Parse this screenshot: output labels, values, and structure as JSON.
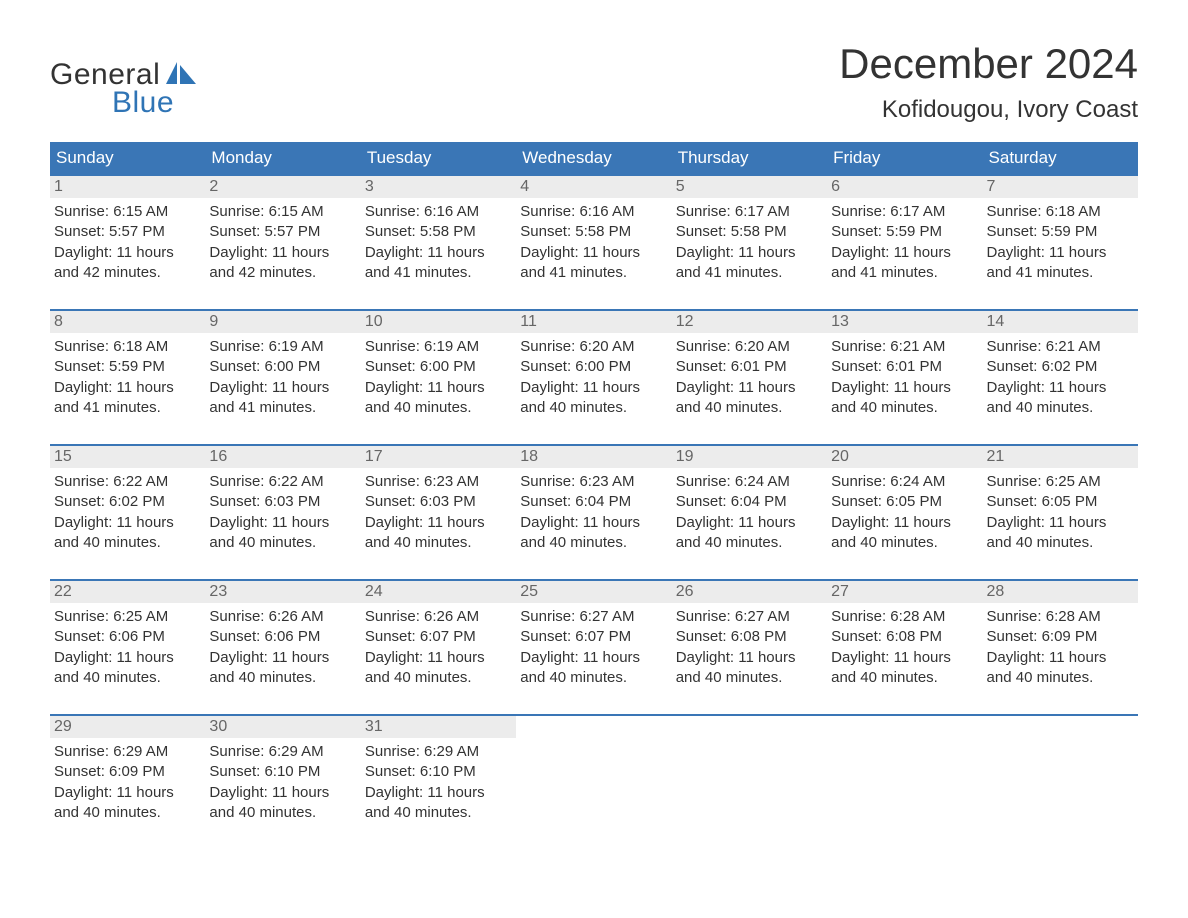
{
  "logo": {
    "word1": "General",
    "word2": "Blue",
    "word1_color": "#333333",
    "word2_color": "#2f74b5"
  },
  "header": {
    "month_title": "December 2024",
    "location": "Kofidougou, Ivory Coast"
  },
  "colors": {
    "header_bg": "#3a76b6",
    "header_text": "#ffffff",
    "row_separator": "#3a76b6",
    "daynum_bg": "#ececec",
    "daynum_text": "#666666",
    "body_text": "#333333",
    "page_bg": "#ffffff"
  },
  "typography": {
    "month_title_fontsize": 42,
    "location_fontsize": 24,
    "weekday_header_fontsize": 17,
    "daynum_fontsize": 16,
    "detail_fontsize": 15,
    "logo_fontsize": 30,
    "font_family": "Arial"
  },
  "calendar": {
    "type": "table",
    "columns": [
      "Sunday",
      "Monday",
      "Tuesday",
      "Wednesday",
      "Thursday",
      "Friday",
      "Saturday"
    ],
    "weeks": [
      [
        {
          "day": "1",
          "sunrise": "6:15 AM",
          "sunset": "5:57 PM",
          "daylight_hours": 11,
          "daylight_minutes": 42
        },
        {
          "day": "2",
          "sunrise": "6:15 AM",
          "sunset": "5:57 PM",
          "daylight_hours": 11,
          "daylight_minutes": 42
        },
        {
          "day": "3",
          "sunrise": "6:16 AM",
          "sunset": "5:58 PM",
          "daylight_hours": 11,
          "daylight_minutes": 41
        },
        {
          "day": "4",
          "sunrise": "6:16 AM",
          "sunset": "5:58 PM",
          "daylight_hours": 11,
          "daylight_minutes": 41
        },
        {
          "day": "5",
          "sunrise": "6:17 AM",
          "sunset": "5:58 PM",
          "daylight_hours": 11,
          "daylight_minutes": 41
        },
        {
          "day": "6",
          "sunrise": "6:17 AM",
          "sunset": "5:59 PM",
          "daylight_hours": 11,
          "daylight_minutes": 41
        },
        {
          "day": "7",
          "sunrise": "6:18 AM",
          "sunset": "5:59 PM",
          "daylight_hours": 11,
          "daylight_minutes": 41
        }
      ],
      [
        {
          "day": "8",
          "sunrise": "6:18 AM",
          "sunset": "5:59 PM",
          "daylight_hours": 11,
          "daylight_minutes": 41
        },
        {
          "day": "9",
          "sunrise": "6:19 AM",
          "sunset": "6:00 PM",
          "daylight_hours": 11,
          "daylight_minutes": 41
        },
        {
          "day": "10",
          "sunrise": "6:19 AM",
          "sunset": "6:00 PM",
          "daylight_hours": 11,
          "daylight_minutes": 40
        },
        {
          "day": "11",
          "sunrise": "6:20 AM",
          "sunset": "6:00 PM",
          "daylight_hours": 11,
          "daylight_minutes": 40
        },
        {
          "day": "12",
          "sunrise": "6:20 AM",
          "sunset": "6:01 PM",
          "daylight_hours": 11,
          "daylight_minutes": 40
        },
        {
          "day": "13",
          "sunrise": "6:21 AM",
          "sunset": "6:01 PM",
          "daylight_hours": 11,
          "daylight_minutes": 40
        },
        {
          "day": "14",
          "sunrise": "6:21 AM",
          "sunset": "6:02 PM",
          "daylight_hours": 11,
          "daylight_minutes": 40
        }
      ],
      [
        {
          "day": "15",
          "sunrise": "6:22 AM",
          "sunset": "6:02 PM",
          "daylight_hours": 11,
          "daylight_minutes": 40
        },
        {
          "day": "16",
          "sunrise": "6:22 AM",
          "sunset": "6:03 PM",
          "daylight_hours": 11,
          "daylight_minutes": 40
        },
        {
          "day": "17",
          "sunrise": "6:23 AM",
          "sunset": "6:03 PM",
          "daylight_hours": 11,
          "daylight_minutes": 40
        },
        {
          "day": "18",
          "sunrise": "6:23 AM",
          "sunset": "6:04 PM",
          "daylight_hours": 11,
          "daylight_minutes": 40
        },
        {
          "day": "19",
          "sunrise": "6:24 AM",
          "sunset": "6:04 PM",
          "daylight_hours": 11,
          "daylight_minutes": 40
        },
        {
          "day": "20",
          "sunrise": "6:24 AM",
          "sunset": "6:05 PM",
          "daylight_hours": 11,
          "daylight_minutes": 40
        },
        {
          "day": "21",
          "sunrise": "6:25 AM",
          "sunset": "6:05 PM",
          "daylight_hours": 11,
          "daylight_minutes": 40
        }
      ],
      [
        {
          "day": "22",
          "sunrise": "6:25 AM",
          "sunset": "6:06 PM",
          "daylight_hours": 11,
          "daylight_minutes": 40
        },
        {
          "day": "23",
          "sunrise": "6:26 AM",
          "sunset": "6:06 PM",
          "daylight_hours": 11,
          "daylight_minutes": 40
        },
        {
          "day": "24",
          "sunrise": "6:26 AM",
          "sunset": "6:07 PM",
          "daylight_hours": 11,
          "daylight_minutes": 40
        },
        {
          "day": "25",
          "sunrise": "6:27 AM",
          "sunset": "6:07 PM",
          "daylight_hours": 11,
          "daylight_minutes": 40
        },
        {
          "day": "26",
          "sunrise": "6:27 AM",
          "sunset": "6:08 PM",
          "daylight_hours": 11,
          "daylight_minutes": 40
        },
        {
          "day": "27",
          "sunrise": "6:28 AM",
          "sunset": "6:08 PM",
          "daylight_hours": 11,
          "daylight_minutes": 40
        },
        {
          "day": "28",
          "sunrise": "6:28 AM",
          "sunset": "6:09 PM",
          "daylight_hours": 11,
          "daylight_minutes": 40
        }
      ],
      [
        {
          "day": "29",
          "sunrise": "6:29 AM",
          "sunset": "6:09 PM",
          "daylight_hours": 11,
          "daylight_minutes": 40
        },
        {
          "day": "30",
          "sunrise": "6:29 AM",
          "sunset": "6:10 PM",
          "daylight_hours": 11,
          "daylight_minutes": 40
        },
        {
          "day": "31",
          "sunrise": "6:29 AM",
          "sunset": "6:10 PM",
          "daylight_hours": 11,
          "daylight_minutes": 40
        },
        null,
        null,
        null,
        null
      ]
    ],
    "labels": {
      "sunrise_prefix": "Sunrise: ",
      "sunset_prefix": "Sunset: ",
      "daylight_prefix": "Daylight: ",
      "hours_word": " hours",
      "and_word": "and ",
      "minutes_word": " minutes."
    }
  }
}
